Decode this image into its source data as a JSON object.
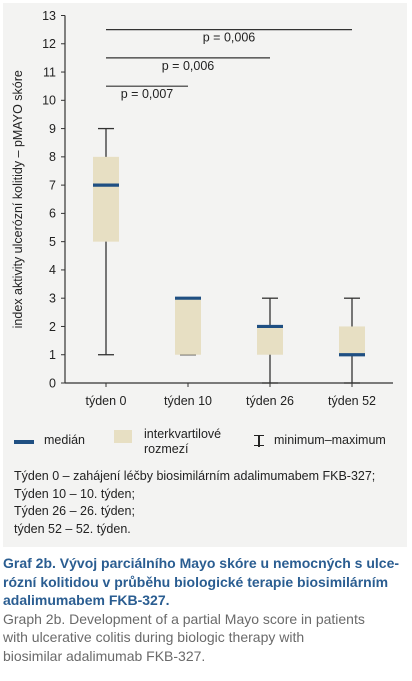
{
  "chart_data": {
    "type": "box",
    "categories": [
      "týden 0",
      "týden 10",
      "týden 26",
      "týden 52"
    ],
    "boxes": [
      {
        "category": "týden 0",
        "min": 1,
        "q1": 5,
        "median": 7,
        "q3": 8,
        "max": 9
      },
      {
        "category": "týden 10",
        "min": 1,
        "q1": 1,
        "median": 3,
        "q3": 3,
        "max": 3
      },
      {
        "category": "týden 26",
        "min": 0,
        "q1": 1,
        "median": 2,
        "q3": 2,
        "max": 3
      },
      {
        "category": "týden 52",
        "min": 0,
        "q1": 1,
        "median": 1,
        "q3": 2,
        "max": 3
      }
    ],
    "ylabel": "index aktivity ulcerózní kolitidy – pMAYO skóre",
    "xlabel": "",
    "ylim": [
      0,
      13
    ],
    "yticks": [
      0,
      1,
      2,
      3,
      4,
      5,
      6,
      7,
      8,
      9,
      10,
      11,
      12,
      13
    ],
    "grid": false,
    "significance": [
      {
        "from": "týden 0",
        "to": "týden 10",
        "label": "p = 0,007",
        "level": 10.5
      },
      {
        "from": "týden 0",
        "to": "týden 26",
        "label": "p = 0,006",
        "level": 11.5
      },
      {
        "from": "týden 0",
        "to": "týden 52",
        "label": "p = 0,006",
        "level": 12.5
      }
    ],
    "colors": {
      "median": "#1f4f82",
      "iqr": "#e7dfc3",
      "whisker": "#333333"
    }
  },
  "legend": {
    "median": "medián",
    "iqr": "interkvartilové\nrozmezí",
    "minmax": "minimum–maximum"
  },
  "notes": [
    "Týden 0 – zahájení léčby biosimilárním adalimumabem FKB-327;",
    "Týden 10 – 10. týden;",
    "Týden 26 – 26. týden;",
    "týden 52 – 52. týden."
  ],
  "caption": {
    "cz": "Graf 2b. Vývoj parciálního Mayo skóre u nemocných s ulce-\nrózní kolitidou v průběhu biologické terapie biosimilárním\nadalimumabem FKB-327.",
    "en": "Graph 2b. Development of a partial Mayo score in patients\nwith ulcerative colitis during biologic therapy with\nbiosimilar adalimumab FKB-327."
  }
}
